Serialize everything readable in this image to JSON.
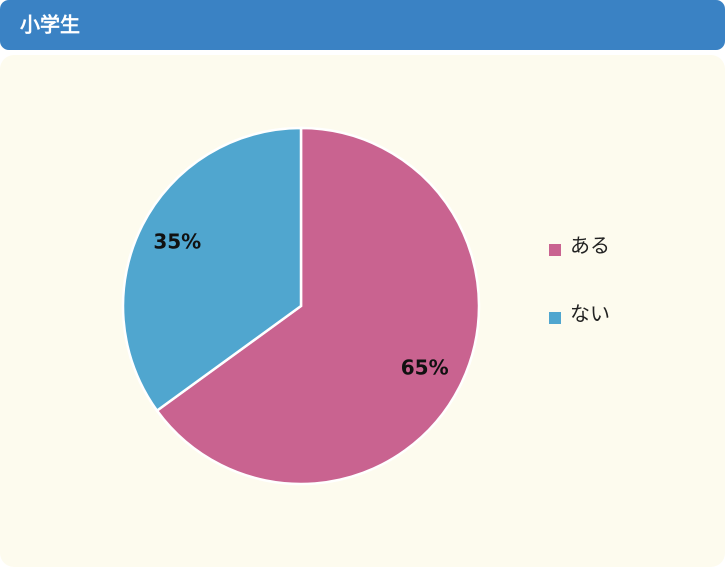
{
  "chart_data": {
    "type": "pie",
    "title": "小学生",
    "categories": [
      "ある",
      "ない"
    ],
    "values": [
      65,
      35
    ],
    "value_labels": [
      "65%",
      "35%"
    ],
    "colors": [
      "#c96390",
      "#50a6cf"
    ],
    "legend": "right"
  }
}
